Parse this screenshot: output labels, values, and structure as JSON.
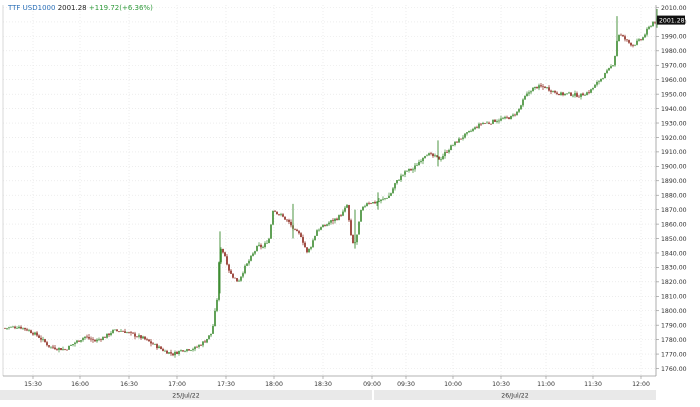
{
  "header": {
    "symbol": "TTF USD1000",
    "price": "2001.28",
    "change": "+119.72(+6.36%)"
  },
  "last_price_label": "2001.28",
  "colors": {
    "up": "#3a8a2e",
    "down": "#8a2418",
    "grid": "#e2e2e2",
    "axis_text": "#333333",
    "header_symbol": "#2a6fb7",
    "header_change": "#2f9a3a",
    "date_band": "#e9e9e9"
  },
  "chart_data": {
    "type": "candlestick",
    "title": "",
    "xlabel": "",
    "ylabel": "",
    "ylim": [
      1755,
      2012
    ],
    "grid": true,
    "legend": "none",
    "y_ticks": [
      "1760.00",
      "1770.00",
      "1780.00",
      "1790.00",
      "1800.00",
      "1810.00",
      "1820.00",
      "1830.00",
      "1840.00",
      "1850.00",
      "1860.00",
      "1870.00",
      "1880.00",
      "1890.00",
      "1900.00",
      "1910.00",
      "1920.00",
      "1930.00",
      "1940.00",
      "1950.00",
      "1960.00",
      "1970.00",
      "1980.00",
      "1990.00",
      "2000.00",
      "2010.00"
    ],
    "x_ticks": [
      "15:30",
      "16:00",
      "16:30",
      "17:00",
      "17:30",
      "18:00",
      "18:30",
      "09:00",
      "09:30",
      "10:00",
      "10:30",
      "11:00",
      "11:30",
      "12:00"
    ],
    "date_labels": [
      "25/Jul/22",
      "26/Jul/22"
    ],
    "series": [
      {
        "name": "TTF USD1000",
        "anchors": [
          [
            0,
            1788
          ],
          [
            14,
            1789
          ],
          [
            22,
            1787
          ],
          [
            32,
            1783
          ],
          [
            45,
            1775
          ],
          [
            60,
            1773
          ],
          [
            70,
            1778
          ],
          [
            80,
            1782
          ],
          [
            90,
            1779
          ],
          [
            100,
            1782
          ],
          [
            108,
            1786
          ],
          [
            118,
            1786
          ],
          [
            130,
            1783
          ],
          [
            138,
            1781
          ],
          [
            150,
            1776
          ],
          [
            160,
            1772
          ],
          [
            168,
            1770
          ],
          [
            178,
            1773
          ],
          [
            190,
            1774
          ],
          [
            200,
            1779
          ],
          [
            207,
            1785
          ],
          [
            212,
            1808
          ],
          [
            215,
            1845
          ],
          [
            220,
            1838
          ],
          [
            225,
            1826
          ],
          [
            233,
            1820
          ],
          [
            240,
            1830
          ],
          [
            247,
            1838
          ],
          [
            253,
            1845
          ],
          [
            258,
            1844
          ],
          [
            264,
            1850
          ],
          [
            268,
            1870
          ],
          [
            276,
            1866
          ],
          [
            283,
            1862
          ],
          [
            290,
            1855
          ],
          [
            296,
            1852
          ],
          [
            302,
            1840
          ],
          [
            306,
            1845
          ],
          [
            312,
            1856
          ],
          [
            320,
            1859
          ],
          [
            326,
            1862
          ],
          [
            332,
            1864
          ],
          [
            338,
            1868
          ],
          [
            342,
            1873
          ],
          [
            347,
            1846
          ],
          [
            351,
            1848
          ],
          [
            356,
            1869
          ],
          [
            362,
            1875
          ],
          [
            370,
            1875
          ],
          [
            378,
            1877
          ],
          [
            385,
            1880
          ],
          [
            390,
            1888
          ],
          [
            396,
            1893
          ],
          [
            402,
            1897
          ],
          [
            408,
            1898
          ],
          [
            415,
            1904
          ],
          [
            421,
            1909
          ],
          [
            428,
            1907
          ],
          [
            435,
            1905
          ],
          [
            441,
            1910
          ],
          [
            448,
            1915
          ],
          [
            455,
            1919
          ],
          [
            461,
            1922
          ],
          [
            469,
            1926
          ],
          [
            477,
            1930
          ],
          [
            484,
            1930
          ],
          [
            491,
            1932
          ],
          [
            499,
            1933
          ],
          [
            506,
            1934
          ],
          [
            513,
            1938
          ],
          [
            520,
            1948
          ],
          [
            526,
            1953
          ],
          [
            532,
            1955
          ],
          [
            540,
            1955
          ],
          [
            548,
            1952
          ],
          [
            556,
            1950
          ],
          [
            565,
            1950
          ],
          [
            575,
            1949
          ],
          [
            585,
            1952
          ],
          [
            595,
            1960
          ],
          [
            603,
            1966
          ],
          [
            609,
            1972
          ],
          [
            613,
            1992
          ],
          [
            617,
            1990
          ],
          [
            623,
            1986
          ],
          [
            628,
            1984
          ],
          [
            632,
            1986
          ],
          [
            637,
            1988
          ],
          [
            642,
            1994
          ],
          [
            648,
            2000
          ],
          [
            652,
            2001.28
          ]
        ]
      }
    ]
  }
}
